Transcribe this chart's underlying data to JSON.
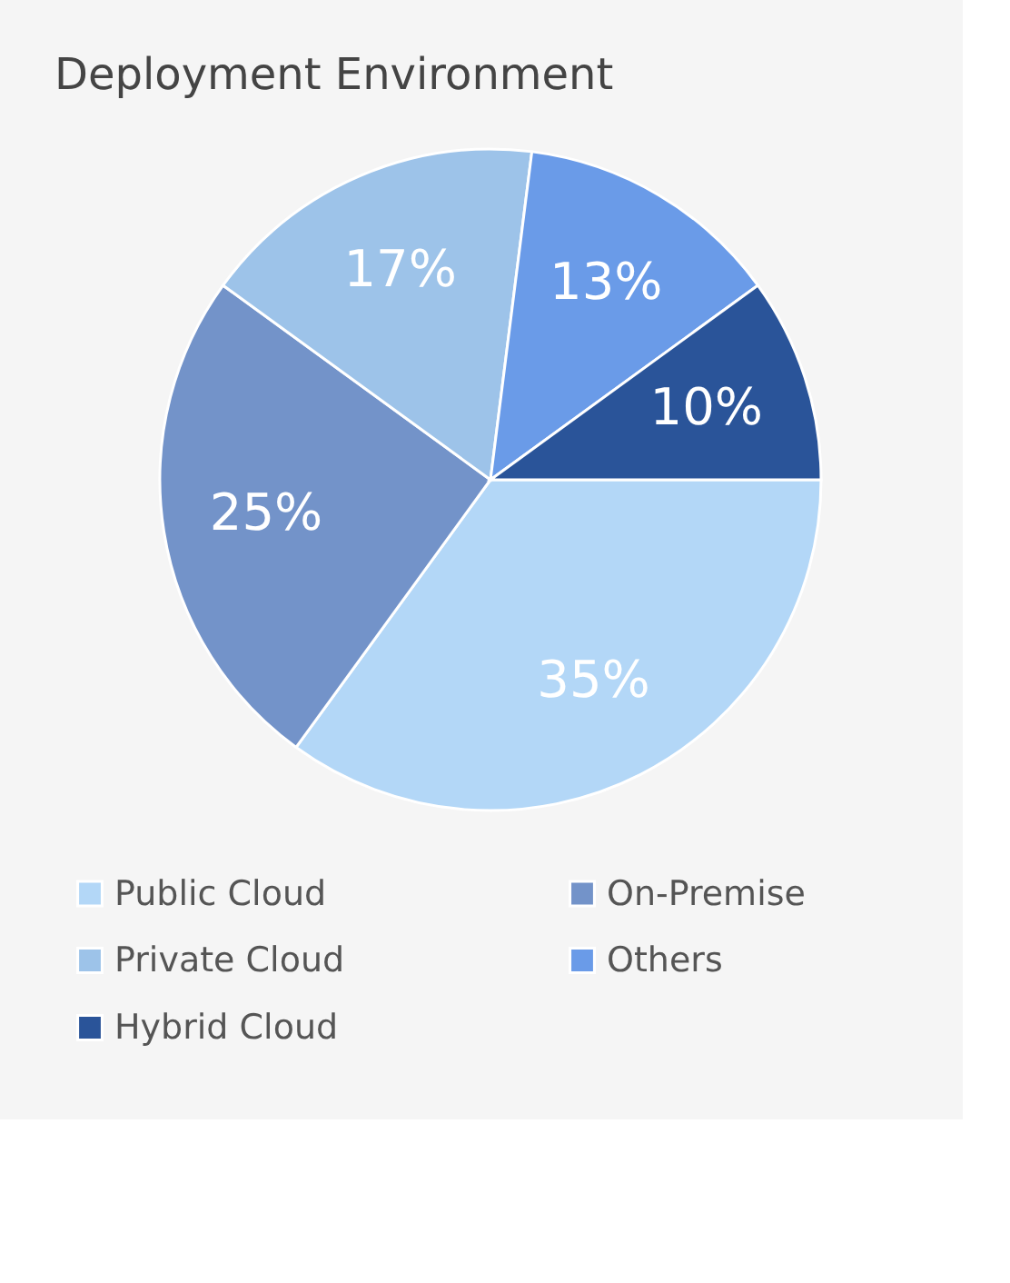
{
  "chart_data": {
    "type": "pie",
    "title": "Deployment Environment",
    "categories": [
      "Public Cloud",
      "On-Premise",
      "Private Cloud",
      "Others",
      "Hybrid Cloud"
    ],
    "values": [
      35,
      25,
      17,
      13,
      10
    ],
    "colors": [
      "#b3d7f7",
      "#7393c9",
      "#9dc3e9",
      "#6a9be8",
      "#2a5499"
    ],
    "value_labels": [
      "35%",
      "25%",
      "17%",
      "13%",
      "10%"
    ],
    "legend": "bottom"
  }
}
